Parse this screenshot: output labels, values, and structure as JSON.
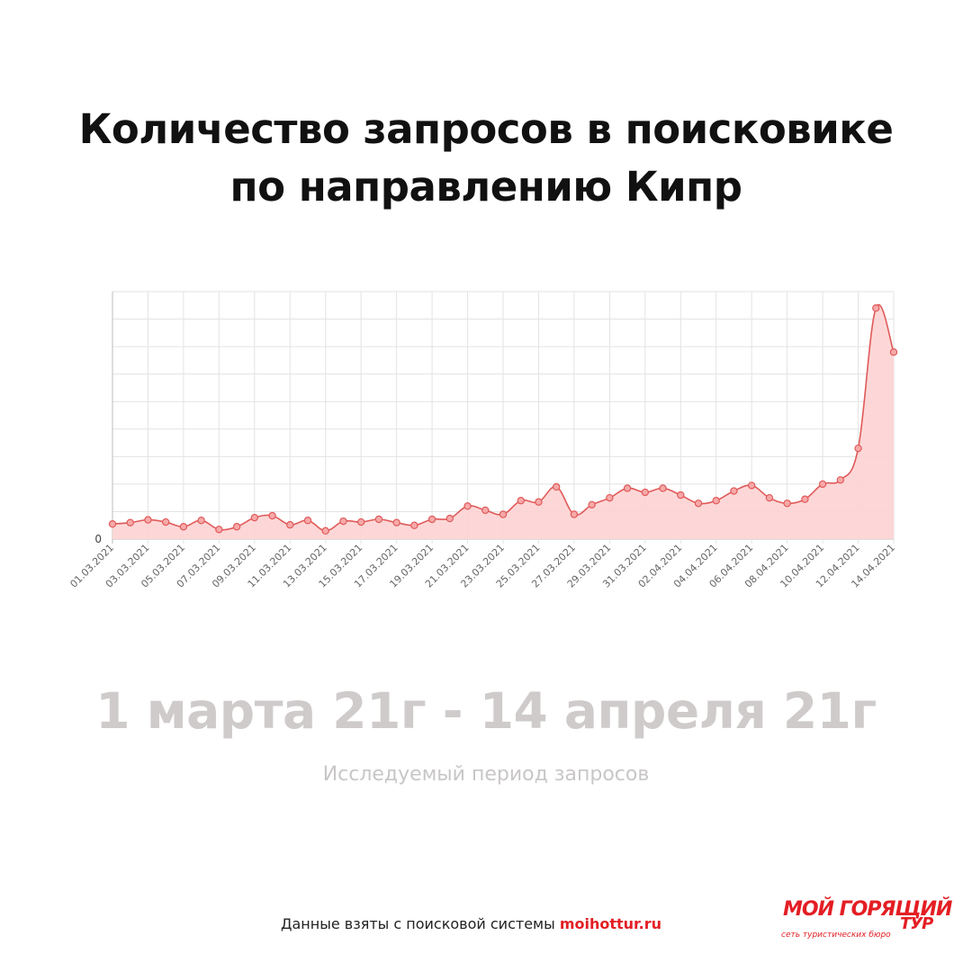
{
  "title": {
    "line1": "Количество запросов в поисковике",
    "line2": "по направлению Кипр"
  },
  "period": {
    "range": "1 марта 21г - 14 апреля 21г",
    "caption": "Исследуемый период запросов"
  },
  "footer": {
    "source_text": "Данные взяты с поисковой системы ",
    "source_site": "moihottur.ru"
  },
  "logo": {
    "name_part1": "МОЙ ГОРЯЩИЙ",
    "name_part2": "ТУР",
    "tagline": "сеть туристических бюро"
  },
  "colors": {
    "line": "#e05a5a",
    "fill": "#fdd3d3",
    "brand": "#e31e24"
  },
  "chart_data": {
    "type": "area",
    "x": [
      "01.03.2021",
      "02.03.2021",
      "03.03.2021",
      "04.03.2021",
      "05.03.2021",
      "06.03.2021",
      "07.03.2021",
      "08.03.2021",
      "09.03.2021",
      "10.03.2021",
      "11.03.2021",
      "12.03.2021",
      "13.03.2021",
      "14.03.2021",
      "15.03.2021",
      "16.03.2021",
      "17.03.2021",
      "18.03.2021",
      "19.03.2021",
      "20.03.2021",
      "21.03.2021",
      "22.03.2021",
      "23.03.2021",
      "24.03.2021",
      "25.03.2021",
      "26.03.2021",
      "27.03.2021",
      "28.03.2021",
      "29.03.2021",
      "30.03.2021",
      "31.03.2021",
      "01.04.2021",
      "02.04.2021",
      "03.04.2021",
      "04.04.2021",
      "05.04.2021",
      "06.04.2021",
      "07.04.2021",
      "08.04.2021",
      "09.04.2021",
      "10.04.2021",
      "11.04.2021",
      "12.04.2021",
      "13.04.2021",
      "14.04.2021"
    ],
    "tick_labels": [
      "01.03.2021",
      "03.03.2021",
      "05.03.2021",
      "07.03.2021",
      "09.03.2021",
      "11.03.2021",
      "13.03.2021",
      "15.03.2021",
      "17.03.2021",
      "19.03.2021",
      "21.03.2021",
      "23.03.2021",
      "25.03.2021",
      "27.03.2021",
      "29.03.2021",
      "31.03.2021",
      "02.04.2021",
      "04.04.2021",
      "06.04.2021",
      "08.04.2021",
      "10.04.2021",
      "12.04.2021",
      "14.04.2021"
    ],
    "values": [
      0.55,
      0.6,
      0.7,
      0.62,
      0.45,
      0.68,
      0.35,
      0.45,
      0.78,
      0.85,
      0.52,
      0.68,
      0.3,
      0.65,
      0.62,
      0.72,
      0.6,
      0.5,
      0.72,
      0.75,
      1.2,
      1.05,
      0.9,
      1.4,
      1.35,
      1.9,
      0.9,
      1.25,
      1.5,
      1.85,
      1.7,
      1.85,
      1.6,
      1.3,
      1.4,
      1.75,
      1.95,
      1.5,
      1.3,
      1.45,
      2.0,
      2.15,
      3.3,
      8.4,
      6.8
    ],
    "y_ticks_labels": [
      "0"
    ],
    "ylim": [
      0,
      9
    ],
    "grid": true
  }
}
